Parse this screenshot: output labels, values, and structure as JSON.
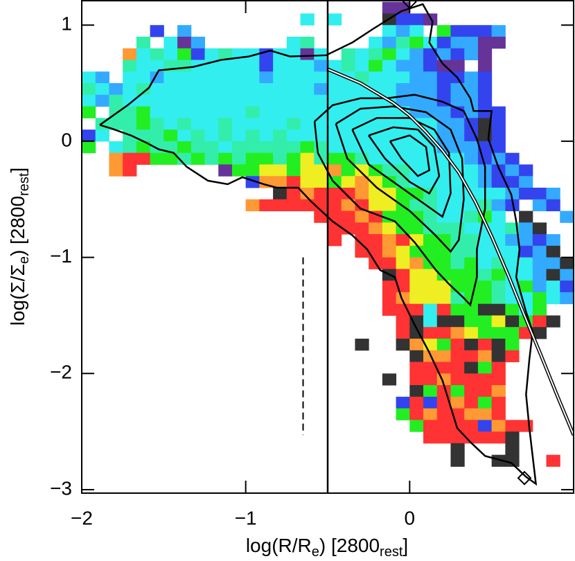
{
  "chart_data": {
    "type": "heatmap",
    "xlabel": [
      "log(R/R",
      "e",
      ")  [2800",
      "rest",
      "]"
    ],
    "ylabel": [
      "log(Σ/Σ",
      "e",
      ")  [2800",
      "rest",
      "]"
    ],
    "xlim": [
      -2,
      1
    ],
    "ylim": [
      -3.03,
      1.21
    ],
    "xticks": [
      {
        "value": -2,
        "label": "−2"
      },
      {
        "value": -1,
        "label": "−1"
      },
      0
    ],
    "yticks": [
      {
        "value": -3,
        "label": "−3"
      },
      {
        "value": -2,
        "label": "−2"
      },
      {
        "value": -1,
        "label": "−1"
      },
      0,
      1
    ],
    "palette": [
      "#333333",
      "#ff3333",
      "#ff9933",
      "#eeee22",
      "#22ee22",
      "#33eeaa",
      "#33eeee",
      "#33aaff",
      "#3344ee",
      "#663399"
    ],
    "x0": -2,
    "dx": 0.08333,
    "dy": 0.1,
    "rows": [
      {
        "y": 1.1,
        "col": 22,
        "c": [
          9,
          9
        ]
      },
      {
        "y": 1.0,
        "col": 16,
        "c": [
          6,
          null,
          6,
          null,
          null,
          null,
          0,
          8,
          8,
          9
        ]
      },
      {
        "y": 0.9,
        "col": 5,
        "c": [
          8,
          null,
          7,
          null,
          null,
          null,
          null,
          null,
          null,
          null,
          null,
          null,
          null,
          null,
          null,
          null,
          null,
          6,
          7,
          6,
          null,
          4,
          8,
          8,
          8,
          7
        ]
      },
      {
        "y": 0.8,
        "col": 4,
        "c": [
          5,
          null,
          6,
          9,
          7,
          null,
          null,
          null,
          null,
          null,
          null,
          6,
          5,
          null,
          null,
          null,
          null,
          6,
          7,
          5,
          4,
          6,
          8,
          7,
          7,
          9,
          9
        ]
      },
      {
        "y": 0.7,
        "col": 3,
        "c": [
          2,
          6,
          5,
          6,
          4,
          8,
          6,
          5,
          6,
          6,
          8,
          6,
          6,
          9,
          6,
          null,
          5,
          6,
          5,
          4,
          6,
          7,
          8,
          7,
          8,
          7,
          9
        ]
      },
      {
        "y": 0.6,
        "col": 3,
        "c": [
          5,
          6,
          6,
          5,
          5,
          6,
          6,
          6,
          6,
          6,
          8,
          6,
          6,
          6,
          7,
          6,
          5,
          6,
          4,
          6,
          7,
          7,
          8,
          9,
          9,
          null,
          9
        ]
      },
      {
        "y": 0.5,
        "col": 0,
        "c": [
          6,
          7,
          null,
          6,
          6,
          7,
          6,
          6,
          6,
          6,
          6,
          6,
          6,
          7,
          6,
          6,
          6,
          6,
          6,
          6,
          5,
          6,
          6,
          6,
          7,
          7,
          8,
          8,
          7,
          8
        ]
      },
      {
        "y": 0.4,
        "col": 0,
        "c": [
          5,
          6,
          7,
          6,
          5,
          6,
          6,
          6,
          6,
          6,
          6,
          6,
          6,
          6,
          6,
          6,
          6,
          7,
          6,
          6,
          6,
          6,
          6,
          7,
          7,
          7,
          8,
          7,
          7,
          8
        ]
      },
      {
        "y": 0.3,
        "col": 0,
        "c": [
          6,
          7,
          5,
          6,
          6,
          6,
          6,
          6,
          6,
          6,
          6,
          6,
          6,
          6,
          6,
          6,
          6,
          6,
          6,
          6,
          6,
          6,
          6,
          7,
          7,
          7,
          8,
          7,
          7,
          8
        ]
      },
      {
        "y": 0.2,
        "col": 0,
        "c": [
          4,
          null,
          5,
          5,
          4,
          6,
          6,
          6,
          6,
          6,
          6,
          6,
          5,
          6,
          6,
          6,
          6,
          6,
          6,
          6,
          6,
          6,
          6,
          6,
          7,
          7,
          7,
          8,
          7,
          8,
          8
        ]
      },
      {
        "y": 0.1,
        "col": 1,
        "c": [
          5,
          5,
          5,
          4,
          5,
          6,
          5,
          6,
          6,
          5,
          6,
          6,
          6,
          6,
          5,
          6,
          6,
          6,
          6,
          6,
          6,
          6,
          6,
          6,
          6,
          7,
          7,
          8,
          0,
          8
        ]
      },
      {
        "y": 0.0,
        "col": 0,
        "c": [
          8,
          6,
          null,
          5,
          5,
          5,
          4,
          6,
          5,
          6,
          5,
          6,
          5,
          6,
          5,
          6,
          6,
          6,
          6,
          6,
          6,
          6,
          6,
          6,
          6,
          6,
          7,
          7,
          8,
          0,
          8
        ]
      },
      {
        "y": -0.1,
        "col": 0,
        "c": [
          4,
          null,
          6,
          5,
          4,
          5,
          5,
          4,
          5,
          5,
          6,
          5,
          5,
          5,
          5,
          5,
          4,
          5,
          6,
          6,
          6,
          6,
          6,
          6,
          6,
          6,
          7,
          7,
          7,
          8,
          8
        ]
      },
      {
        "y": -0.2,
        "col": 2,
        "c": [
          2,
          1,
          1,
          4,
          4,
          5,
          4,
          5,
          4,
          5,
          4,
          4,
          5,
          4,
          3,
          5,
          4,
          4,
          5,
          6,
          6,
          6,
          6,
          6,
          6,
          6,
          7,
          8,
          7,
          8
        ]
      },
      {
        "y": -0.3,
        "col": 2,
        "c": [
          2,
          1,
          null,
          null,
          null,
          null,
          null,
          null,
          9,
          4,
          4,
          3,
          3,
          4,
          3,
          3,
          2,
          4,
          3,
          4,
          5,
          5,
          6,
          6,
          6,
          6,
          6,
          7,
          8,
          7,
          8
        ]
      },
      {
        "y": -0.4,
        "col": 12,
        "c": [
          8,
          2,
          2,
          1,
          3,
          3,
          4,
          3,
          2,
          3,
          4,
          5,
          6,
          6,
          6,
          6,
          6,
          7,
          8,
          8,
          7
        ]
      },
      {
        "y": -0.5,
        "col": 14,
        "c": [
          0,
          1,
          2,
          1,
          1,
          1,
          2,
          3,
          3,
          4,
          4,
          5,
          6,
          6,
          6,
          6,
          6,
          7,
          8,
          8,
          7
        ]
      },
      {
        "y": -0.6,
        "col": 12,
        "c": [
          2,
          1,
          1,
          1,
          1,
          1,
          1,
          2,
          1,
          3,
          3,
          4,
          5,
          5,
          6,
          6,
          6,
          5,
          7,
          8,
          null,
          7,
          8
        ]
      },
      {
        "y": -0.7,
        "col": 17,
        "c": [
          1,
          1,
          1,
          2,
          1,
          4,
          4,
          4,
          5,
          6,
          6,
          5,
          4,
          6,
          null,
          0,
          null,
          null,
          7
        ]
      },
      {
        "y": -0.8,
        "col": 18,
        "c": [
          1,
          1,
          1,
          2,
          3,
          4,
          4,
          5,
          5,
          5,
          6,
          6,
          6,
          5,
          7,
          0
        ]
      },
      {
        "y": -0.9,
        "col": 18,
        "c": [
          1,
          null,
          1,
          1,
          2,
          1,
          3,
          4,
          4,
          5,
          5,
          6,
          6,
          7,
          7,
          8,
          7,
          null,
          null,
          7
        ]
      },
      {
        "y": -1.0,
        "col": 20,
        "c": [
          1,
          1,
          2,
          3,
          4,
          4,
          4,
          5,
          5,
          6,
          6,
          6,
          8,
          7,
          0
        ]
      },
      {
        "y": -1.1,
        "col": 21,
        "c": [
          1,
          1,
          3,
          2,
          4,
          4,
          5,
          4,
          6,
          5,
          6,
          6,
          7,
          7,
          0
        ]
      },
      {
        "y": -1.2,
        "col": 22,
        "c": [
          0,
          1,
          3,
          3,
          4,
          4,
          4,
          5,
          4,
          6,
          6,
          7,
          0,
          7
        ]
      },
      {
        "y": -1.3,
        "col": 22,
        "c": [
          1,
          1,
          3,
          3,
          3,
          4,
          4,
          4,
          5,
          6,
          4,
          7,
          6,
          8
        ]
      },
      {
        "y": -1.4,
        "col": 22,
        "c": [
          1,
          2,
          3,
          3,
          3,
          5,
          4,
          4,
          5,
          6,
          6,
          4,
          6,
          7
        ]
      },
      {
        "y": -1.5,
        "col": 22,
        "c": [
          1,
          1,
          1,
          6,
          1,
          4,
          4,
          0,
          0,
          4,
          6,
          4
        ]
      },
      {
        "y": -1.6,
        "col": 23,
        "c": [
          1,
          0,
          6,
          0,
          0,
          4,
          4,
          3,
          0,
          4,
          1,
          0
        ]
      },
      {
        "y": -1.7,
        "col": 23,
        "c": [
          1,
          0,
          1,
          1,
          2,
          3,
          4,
          4,
          4,
          1,
          0
        ]
      },
      {
        "y": -1.8,
        "col": 20,
        "c": [
          0,
          null,
          null,
          0,
          2,
          3,
          4,
          1,
          0,
          1,
          0,
          4
        ]
      },
      {
        "y": -1.9,
        "col": 24,
        "c": [
          0,
          2,
          2,
          1,
          1,
          2,
          0,
          1
        ]
      },
      {
        "y": -2.0,
        "col": 24,
        "c": [
          1,
          1,
          1,
          1,
          0,
          4,
          1
        ]
      },
      {
        "y": -2.1,
        "col": 22,
        "c": [
          0,
          null,
          1,
          1,
          2,
          1,
          1,
          1,
          1
        ]
      },
      {
        "y": -2.2,
        "col": 24,
        "c": [
          0,
          4,
          1,
          4,
          1,
          1,
          2
        ]
      },
      {
        "y": -2.3,
        "col": 23,
        "c": [
          8,
          1,
          8,
          1,
          2,
          1,
          4,
          1
        ]
      },
      {
        "y": -2.4,
        "col": 23,
        "c": [
          4,
          1,
          2,
          1,
          1,
          2,
          2,
          1
        ]
      },
      {
        "y": -2.5,
        "col": 24,
        "c": [
          4,
          1,
          1,
          1,
          1,
          8,
          2,
          1,
          1
        ]
      },
      {
        "y": -2.6,
        "col": 25,
        "c": [
          1,
          1,
          1,
          1,
          1,
          1,
          0
        ]
      },
      {
        "y": -2.7,
        "col": 27,
        "c": [
          0,
          null,
          null,
          null,
          0
        ]
      },
      {
        "y": -2.8,
        "col": 27,
        "c": [
          0,
          null,
          null,
          0,
          0,
          null,
          null,
          1
        ]
      }
    ],
    "contours": [
      {
        "x": [
          -1.89,
          -1.72,
          -1.59,
          -1.53,
          -1.32,
          -1.15,
          -0.98,
          -0.85,
          -0.73,
          -0.51,
          -0.35,
          -0.22,
          -0.05,
          0.08,
          0.14,
          0.12,
          0.2,
          0.29,
          0.37,
          0.39,
          0.5,
          0.48,
          0.54,
          0.62,
          0.65,
          0.67,
          0.65,
          0.71,
          0.75,
          0.73,
          0.71,
          0.73,
          0.75,
          0.77,
          0.71,
          0.62,
          0.46,
          0.37,
          0.29,
          0.24,
          0.2,
          0.12,
          0.03,
          -0.05,
          -0.09,
          -0.18,
          -0.26,
          -0.35,
          -0.47,
          -0.6,
          -0.68,
          -0.81,
          -0.89,
          -1.02,
          -1.11,
          -1.23,
          -1.36,
          -1.44,
          -1.53,
          -1.61,
          -1.7,
          -1.82,
          -1.89
        ],
        "y": [
          0.14,
          0.31,
          0.46,
          0.61,
          0.64,
          0.7,
          0.73,
          0.78,
          0.73,
          0.74,
          0.85,
          0.97,
          1.12,
          1.18,
          1.03,
          0.85,
          0.67,
          0.55,
          0.37,
          0.26,
          0.26,
          0.02,
          -0.22,
          -0.46,
          -0.69,
          -0.93,
          -1.17,
          -1.47,
          -1.64,
          -1.88,
          -2.18,
          -2.47,
          -2.71,
          -2.95,
          -2.89,
          -2.77,
          -2.71,
          -2.59,
          -2.47,
          -2.24,
          -2.06,
          -1.82,
          -1.58,
          -1.35,
          -1.17,
          -1.11,
          -0.93,
          -0.81,
          -0.69,
          -0.52,
          -0.4,
          -0.4,
          -0.37,
          -0.31,
          -0.37,
          -0.34,
          -0.22,
          -0.1,
          -0.07,
          -0.01,
          0.05,
          0.11,
          0.14
        ]
      },
      {
        "x": [
          -0.58,
          -0.47,
          -0.3,
          -0.14,
          0.03,
          0.2,
          0.33,
          0.41,
          0.46,
          0.46,
          0.41,
          0.41,
          0.37,
          0.33,
          0.24,
          0.16,
          0.03,
          -0.09,
          -0.3,
          -0.47,
          -0.56,
          -0.58
        ],
        "y": [
          0.17,
          0.31,
          0.37,
          0.37,
          0.4,
          0.34,
          0.26,
          0.02,
          -0.22,
          -0.58,
          -0.93,
          -1.17,
          -1.41,
          -1.35,
          -1.23,
          -1.11,
          -0.87,
          -0.69,
          -0.58,
          -0.34,
          -0.1,
          0.17
        ]
      },
      {
        "x": [
          -0.45,
          -0.3,
          -0.1,
          0.1,
          0.25,
          0.32,
          0.33,
          0.3,
          0.25,
          0.15,
          0.0,
          -0.2,
          -0.38,
          -0.45
        ],
        "y": [
          0.15,
          0.28,
          0.3,
          0.25,
          0.1,
          -0.15,
          -0.5,
          -0.85,
          -0.95,
          -0.8,
          -0.6,
          -0.4,
          -0.15,
          0.15
        ]
      },
      {
        "x": [
          -0.35,
          -0.2,
          0.0,
          0.15,
          0.24,
          0.25,
          0.2,
          0.1,
          -0.05,
          -0.25,
          -0.35
        ],
        "y": [
          0.1,
          0.2,
          0.2,
          0.1,
          -0.1,
          -0.45,
          -0.65,
          -0.55,
          -0.4,
          -0.2,
          0.1
        ]
      },
      {
        "x": [
          -0.25,
          -0.1,
          0.05,
          0.15,
          0.18,
          0.12,
          0.0,
          -0.15,
          -0.25
        ],
        "y": [
          0.05,
          0.12,
          0.1,
          -0.05,
          -0.3,
          -0.45,
          -0.35,
          -0.15,
          0.05
        ]
      },
      {
        "x": [
          -0.12,
          0.0,
          0.1,
          0.12,
          0.05,
          -0.05,
          -0.12
        ],
        "y": [
          0.0,
          0.05,
          -0.05,
          -0.25,
          -0.3,
          -0.15,
          0.0
        ]
      }
    ],
    "model": {
      "x": [
        -0.5,
        -0.3,
        -0.1,
        0.0,
        0.1,
        0.2,
        0.3,
        0.4,
        0.5,
        0.6,
        0.7,
        0.8,
        0.9,
        1.0
      ],
      "y": [
        0.62,
        0.5,
        0.33,
        0.22,
        0.08,
        -0.08,
        -0.27,
        -0.52,
        -0.82,
        -1.15,
        -1.5,
        -1.84,
        -2.19,
        -2.53
      ]
    },
    "vline": -0.5,
    "dashed": {
      "x": -0.65,
      "y": [
        -1.0,
        -2.53
      ]
    },
    "markers": {
      "x": [
        0.0,
        0.7
      ],
      "y": [
        1.2,
        -2.9
      ]
    }
  }
}
